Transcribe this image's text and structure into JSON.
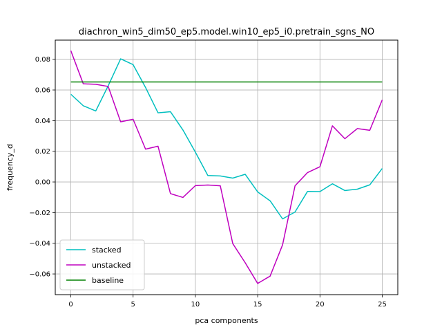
{
  "chart_data": {
    "type": "line",
    "title": "diachron_win5_dim50_ep5.model.win10_ep5_i0.pretrain_sgns_NO",
    "xlabel": "pca components",
    "ylabel": "frequency_d",
    "xlim": [
      -1.25,
      26.25
    ],
    "ylim": [
      -0.0735,
      0.0925
    ],
    "xticks": [
      0,
      5,
      10,
      15,
      20,
      25
    ],
    "yticks": [
      -0.06,
      -0.04,
      -0.02,
      0.0,
      0.02,
      0.04,
      0.06,
      0.08
    ],
    "ytick_labels": [
      "−0.06",
      "−0.04",
      "−0.02",
      "0.00",
      "0.02",
      "0.04",
      "0.06",
      "0.08"
    ],
    "grid": true,
    "legend_position": "lower-left",
    "x": [
      0,
      1,
      2,
      3,
      4,
      5,
      6,
      7,
      8,
      9,
      10,
      11,
      12,
      13,
      14,
      15,
      16,
      17,
      18,
      19,
      20,
      21,
      22,
      23,
      24,
      25
    ],
    "series": [
      {
        "name": "stacked",
        "color": "#00bfbf",
        "values": [
          0.0572,
          0.0497,
          0.0463,
          0.0627,
          0.0803,
          0.0765,
          0.0616,
          0.0451,
          0.0458,
          0.0339,
          0.0194,
          0.0042,
          0.0039,
          0.0025,
          0.005,
          -0.0065,
          -0.0123,
          -0.0241,
          -0.0196,
          -0.0062,
          -0.0063,
          -0.0012,
          -0.0056,
          -0.0047,
          -0.0019,
          0.0088
        ]
      },
      {
        "name": "unstacked",
        "color": "#bf00bf",
        "values": [
          0.0856,
          0.064,
          0.0637,
          0.0623,
          0.0392,
          0.0409,
          0.0214,
          0.0233,
          -0.0076,
          -0.0101,
          -0.0024,
          -0.002,
          -0.0025,
          -0.0402,
          -0.0527,
          -0.0662,
          -0.0614,
          -0.041,
          -0.0025,
          0.0061,
          0.0099,
          0.0366,
          0.0282,
          0.0348,
          0.0337,
          0.0535
        ]
      },
      {
        "name": "baseline",
        "color": "#008000",
        "values": [
          0.0652,
          0.0652,
          0.0652,
          0.0652,
          0.0652,
          0.0652,
          0.0652,
          0.0652,
          0.0652,
          0.0652,
          0.0652,
          0.0652,
          0.0652,
          0.0652,
          0.0652,
          0.0652,
          0.0652,
          0.0652,
          0.0652,
          0.0652,
          0.0652,
          0.0652,
          0.0652,
          0.0652,
          0.0652,
          0.0652
        ]
      }
    ]
  }
}
